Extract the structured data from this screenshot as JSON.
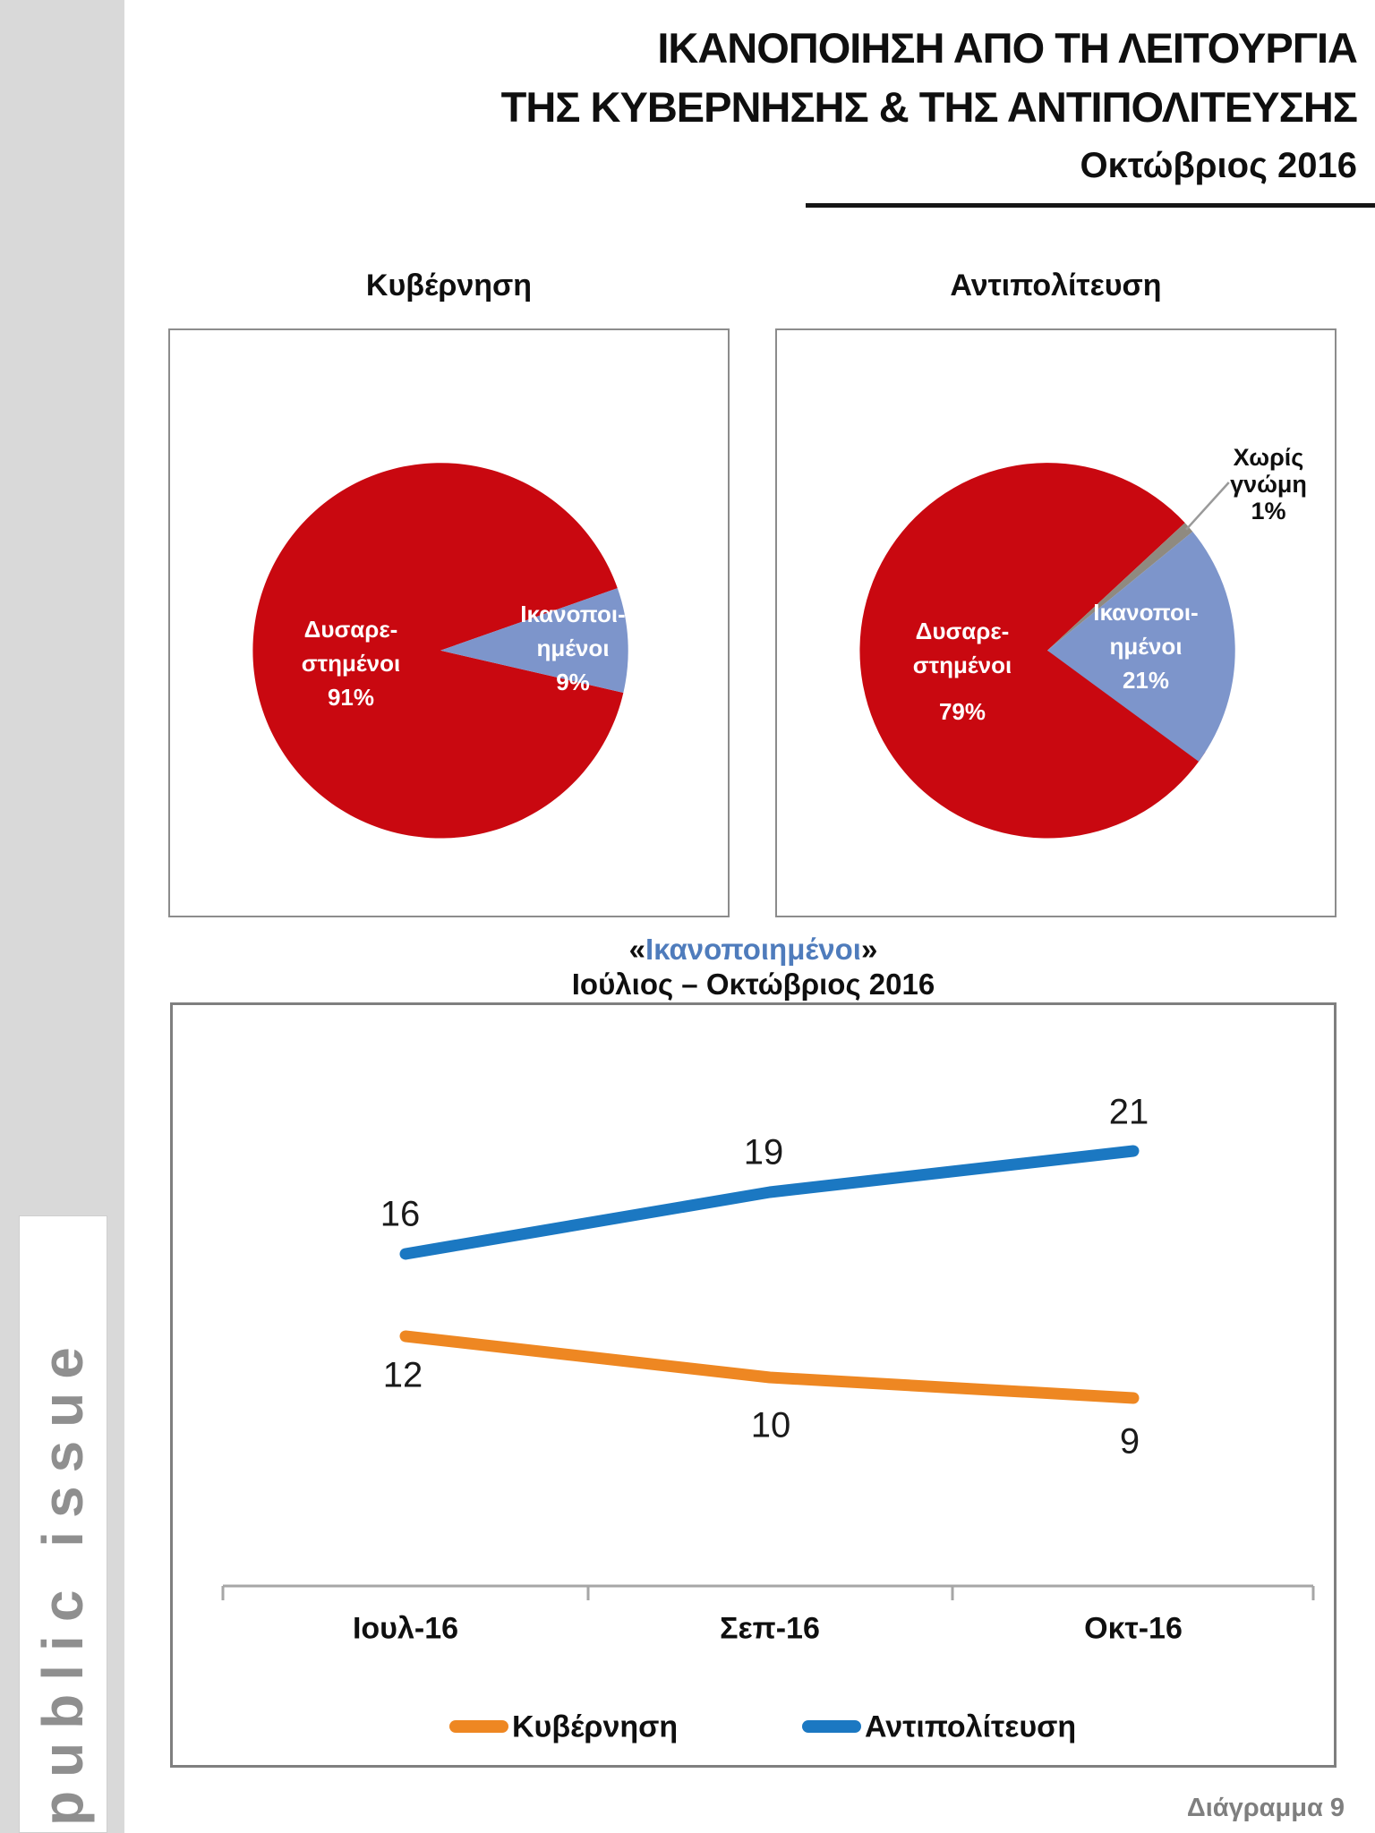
{
  "page_title": {
    "line1": "ΙΚΑΝΟΠΟΙΗΣΗ ΑΠΟ ΤΗ ΛΕΙΤΟΥΡΓΙΑ",
    "line2": "ΤΗΣ ΚΥΒΕΡΝΗΣΗΣ & ΤΗΣ ΑΝΤΙΠΟΛΙΤΕΥΣΗΣ",
    "date": "Οκτώβριος 2016"
  },
  "logo_text": "public issue",
  "footer_caption": "Διάγραμμα 9",
  "pies": {
    "left": {
      "dissatisfied_label": [
        "Δυσαρε-",
        "στημένοι",
        "91%"
      ],
      "satisfied_label": [
        "Ικανοποι-",
        "ημένοι",
        "9%"
      ]
    },
    "right": {
      "dissatisfied_label": [
        "Δυσαρε-",
        "στημένοι",
        "79%"
      ],
      "satisfied_label": [
        "Ικανοποι-",
        "ημένοι",
        "21%"
      ],
      "no_opinion_label": [
        "Χωρίς",
        "γνώμη",
        "1%"
      ]
    }
  },
  "trend": {
    "heading_quote_open": "«",
    "heading_word": "Ικανοποιημένοι",
    "heading_quote_close": "»",
    "subheading": "Ιούλιος – Οκτώβριος 2016"
  },
  "colors": {
    "dissatisfied_red": "#C90810",
    "satisfied_blue": "#7D95CB",
    "no_opinion_gray": "#8F8A80",
    "line_government_orange": "#EE8722",
    "line_opposition_blue": "#1B78C2",
    "heading_word_blue": "#4F7CBC",
    "sidebar_gray": "#D9D9D9",
    "caption_gray": "#7F7F7F"
  },
  "chart_data": [
    {
      "type": "pie",
      "title": "Κυβέρνηση",
      "slices": [
        {
          "name": "satisfied",
          "label": "Ικανοποιημένοι",
          "value": 9,
          "color": "#7D95CB"
        },
        {
          "name": "dissatisfied",
          "label": "Δυσαρεστημένοι",
          "value": 91,
          "color": "#C90810"
        }
      ]
    },
    {
      "type": "pie",
      "title": "Αντιπολίτευση",
      "slices": [
        {
          "name": "satisfied",
          "label": "Ικανοποιημένοι",
          "value": 21,
          "color": "#7D95CB"
        },
        {
          "name": "no-opinion",
          "label": "Χωρίς γνώμη",
          "value": 1,
          "color": "#8F8A80"
        },
        {
          "name": "dissatisfied",
          "label": "Δυσαρεστημένοι",
          "value": 79,
          "color": "#C90810"
        }
      ]
    },
    {
      "type": "line",
      "title": "«Ικανοποιημένοι» Ιούλιος – Οκτώβριος 2016",
      "categories": [
        "Ιουλ-16",
        "Σεπ-16",
        "Οκτ-16"
      ],
      "series": [
        {
          "name": "Κυβέρνηση",
          "values": [
            12,
            10,
            9
          ],
          "color": "#EE8722"
        },
        {
          "name": "Αντιπολίτευση",
          "values": [
            16,
            19,
            21
          ],
          "color": "#1B78C2"
        }
      ],
      "ylim": [
        0,
        28
      ],
      "grid": false,
      "legend_position": "bottom"
    }
  ]
}
